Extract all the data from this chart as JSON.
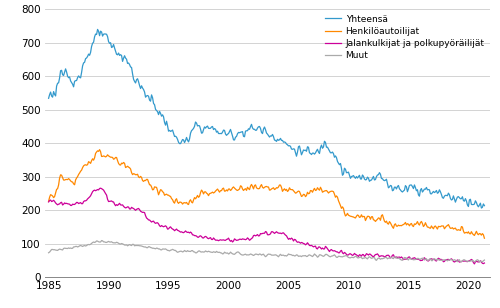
{
  "line_colors": {
    "yhteensa": "#3399cc",
    "henkiloautoilijat": "#ff8800",
    "jalankulkijat": "#cc0099",
    "muut": "#aaaaaa"
  },
  "legend_labels": {
    "yhteensa": "Yhteensä",
    "henkiloautoilijat": "Henkilöautoilijat",
    "jalankulkijat": "Jalankulkijat ja polkupyöräilijät",
    "muut": "Muut"
  },
  "ylim": [
    0,
    800
  ],
  "yticks": [
    0,
    100,
    200,
    300,
    400,
    500,
    600,
    700,
    800
  ],
  "xticks": [
    1985,
    1990,
    1995,
    2000,
    2005,
    2010,
    2015,
    2020
  ],
  "xlim": [
    1984.7,
    2021.8
  ],
  "background_color": "#ffffff",
  "grid_color": "#cccccc",
  "linewidth": 0.9,
  "figsize": [
    5.0,
    3.08
  ],
  "dpi": 100
}
